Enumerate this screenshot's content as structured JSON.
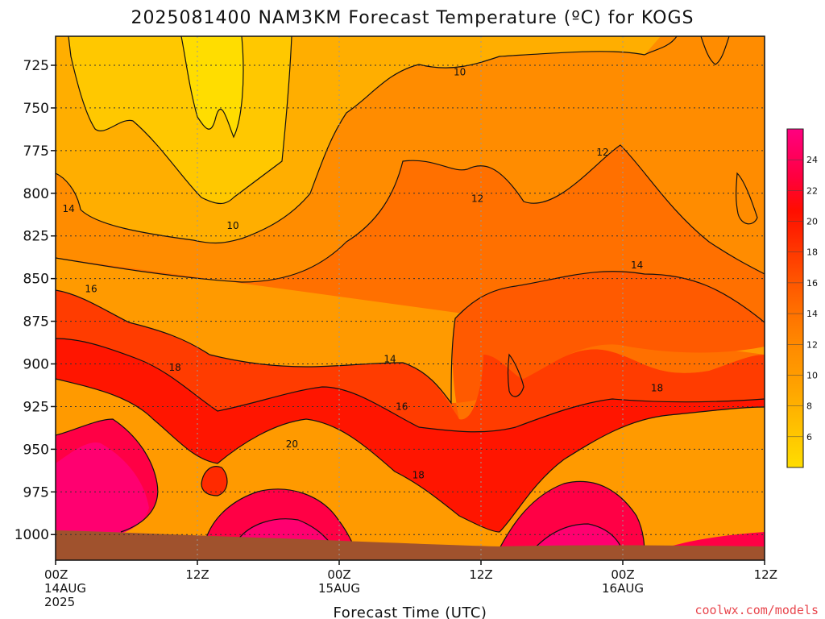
{
  "title": "2025081400 NAM3KM Forecast Temperature (ºC) for KOGS",
  "credit": "coolwx.com/models",
  "chart_data": {
    "type": "heatmap",
    "title": "2025081400 NAM3KM Forecast Temperature (ºC) for KOGS",
    "xlabel": "Forecast Time (UTC)",
    "ylabel": "",
    "x_ticks": [
      {
        "hour": 0,
        "lines": [
          "00Z",
          "14AUG",
          "2025"
        ]
      },
      {
        "hour": 12,
        "lines": [
          "12Z"
        ]
      },
      {
        "hour": 24,
        "lines": [
          "00Z",
          "15AUG"
        ]
      },
      {
        "hour": 36,
        "lines": [
          "12Z"
        ]
      },
      {
        "hour": 48,
        "lines": [
          "00Z",
          "16AUG"
        ]
      },
      {
        "hour": 60,
        "lines": [
          "12Z"
        ]
      }
    ],
    "xlim": [
      0,
      60
    ],
    "y_ticks": [
      725,
      750,
      775,
      800,
      825,
      850,
      875,
      900,
      925,
      950,
      975,
      1000
    ],
    "ylim": [
      708,
      1015
    ],
    "y_inverted": true,
    "colorbar": {
      "levels": [
        4,
        6,
        8,
        10,
        12,
        14,
        16,
        18,
        20,
        22,
        24,
        26
      ],
      "labels": [
        6,
        8,
        10,
        12,
        14,
        16,
        18,
        20,
        22,
        24
      ],
      "colors": [
        "#ffdd00",
        "#ffc800",
        "#ffb000",
        "#ff9a00",
        "#ff8000",
        "#ff6600",
        "#ff4a00",
        "#ff2a00",
        "#ff0a00",
        "#ff0060",
        "#ff0080"
      ]
    },
    "contour_labels": [
      {
        "text": "10",
        "hour": 34.2,
        "p": 730
      },
      {
        "text": "10",
        "hour": 15.0,
        "p": 820
      },
      {
        "text": "12",
        "hour": 46.3,
        "p": 777
      },
      {
        "text": "12",
        "hour": 35.7,
        "p": 804
      },
      {
        "text": "14",
        "hour": 1.1,
        "p": 810
      },
      {
        "text": "14",
        "hour": 49.2,
        "p": 843
      },
      {
        "text": "14",
        "hour": 28.3,
        "p": 898
      },
      {
        "text": "16",
        "hour": 3.0,
        "p": 857
      },
      {
        "text": "16",
        "hour": 29.3,
        "p": 926
      },
      {
        "text": "18",
        "hour": 10.1,
        "p": 903
      },
      {
        "text": "18",
        "hour": 50.9,
        "p": 915
      },
      {
        "text": "18",
        "hour": 30.7,
        "p": 966
      },
      {
        "text": "20",
        "hour": 20.0,
        "p": 948
      }
    ],
    "ground": {
      "surface_pressure": [
        1000,
        1003,
        1005,
        1005,
        1005,
        1005
      ],
      "surface_hours": [
        0,
        12,
        24,
        36,
        48,
        60
      ]
    }
  }
}
